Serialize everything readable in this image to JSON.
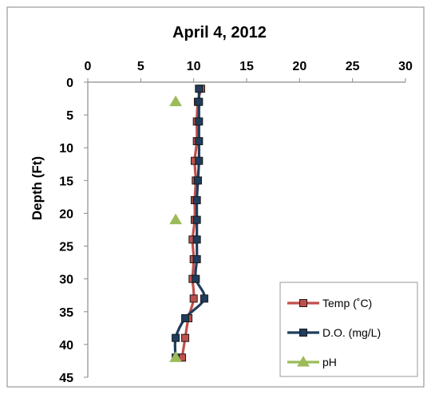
{
  "chart_data": {
    "type": "line",
    "title": "April 4, 2012",
    "xlabel": "",
    "ylabel": "Depth (Ft)",
    "x_axis_position": "top",
    "y_axis_inverted": true,
    "xlim": [
      0,
      30
    ],
    "ylim": [
      0,
      45
    ],
    "x_ticks": [
      "0",
      "5",
      "10",
      "15",
      "20",
      "25",
      "30"
    ],
    "y_ticks": [
      "0",
      "5",
      "10",
      "15",
      "20",
      "25",
      "30",
      "35",
      "40",
      "45"
    ],
    "grid": false,
    "legend_position": "bottom-right",
    "series": [
      {
        "name": "Temp (˚C)",
        "color": "#c0504d",
        "marker": "square",
        "points": [
          [
            10.7,
            1
          ],
          [
            10.4,
            3
          ],
          [
            10.3,
            6
          ],
          [
            10.3,
            9
          ],
          [
            10.1,
            12
          ],
          [
            10.2,
            15
          ],
          [
            10.1,
            18
          ],
          [
            10.1,
            21
          ],
          [
            9.9,
            24
          ],
          [
            10.0,
            27
          ],
          [
            9.9,
            30
          ],
          [
            10.0,
            33
          ],
          [
            9.5,
            36
          ],
          [
            9.2,
            39
          ],
          [
            8.9,
            42
          ]
        ]
      },
      {
        "name": "D.O. (mg/L)",
        "color": "#1f3d5c",
        "marker": "square",
        "points": [
          [
            10.5,
            1
          ],
          [
            10.5,
            3
          ],
          [
            10.5,
            6
          ],
          [
            10.5,
            9
          ],
          [
            10.5,
            12
          ],
          [
            10.4,
            15
          ],
          [
            10.3,
            18
          ],
          [
            10.3,
            21
          ],
          [
            10.3,
            24
          ],
          [
            10.3,
            27
          ],
          [
            10.2,
            30
          ],
          [
            11.0,
            33
          ],
          [
            9.2,
            36
          ],
          [
            8.3,
            39
          ],
          [
            8.3,
            42
          ]
        ]
      },
      {
        "name": "pH",
        "color": "#9bbb59",
        "marker": "triangle",
        "line": false,
        "points": [
          [
            8.3,
            3
          ],
          [
            8.3,
            21
          ],
          [
            8.3,
            42
          ]
        ]
      }
    ]
  }
}
